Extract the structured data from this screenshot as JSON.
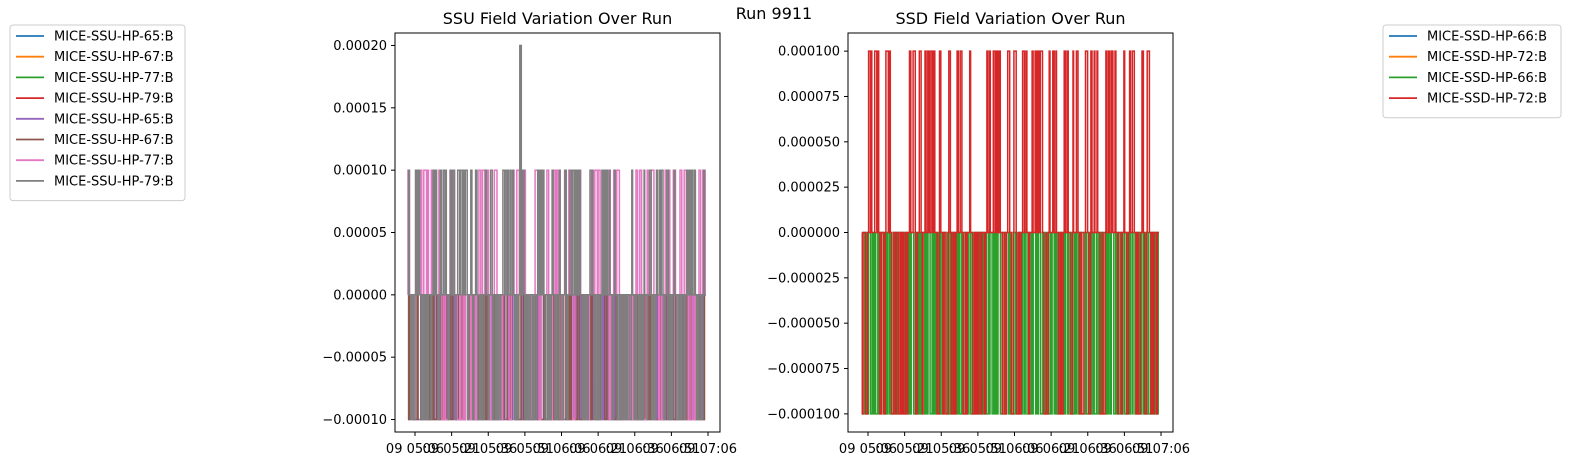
{
  "suptitle": "Run 9911",
  "chart_data": [
    {
      "type": "line",
      "title": "SSU Field Variation Over Run",
      "xlabel": "",
      "ylabel": "",
      "ylim": [
        -0.00011,
        0.00021
      ],
      "yticks": [
        -0.0001,
        -5e-05,
        0.0,
        5e-05,
        0.0001,
        0.00015,
        0.0002
      ],
      "ytick_labels": [
        "−0.00010",
        "−0.00005",
        "0.00000",
        "0.00005",
        "0.00010",
        "0.00015",
        "0.00020"
      ],
      "xtick_labels": [
        "09 05:06",
        "09 05:21",
        "09 05:36",
        "09 05:51",
        "09 06:06",
        "09 06:21",
        "09 06:36",
        "09 06:51",
        "09 07:06"
      ],
      "grid": false,
      "legend_position": "outside-left",
      "legend": [
        {
          "name": "MICE-SSU-HP-65:B",
          "color": "#1f77b4"
        },
        {
          "name": "MICE-SSU-HP-67:B",
          "color": "#ff7f0e"
        },
        {
          "name": "MICE-SSU-HP-77:B",
          "color": "#2ca02c"
        },
        {
          "name": "MICE-SSU-HP-79:B",
          "color": "#d62728"
        },
        {
          "name": "MICE-SSU-HP-65:B",
          "color": "#9467bd"
        },
        {
          "name": "MICE-SSU-HP-67:B",
          "color": "#8c564b"
        },
        {
          "name": "MICE-SSU-HP-77:B",
          "color": "#e377c2"
        },
        {
          "name": "MICE-SSU-HP-79:B",
          "color": "#7f7f7f"
        }
      ],
      "series": [
        {
          "name": "MICE-SSU-HP-65:B",
          "color": "#9467bd",
          "pattern": "switching",
          "levels": [
            0,
            -0.0001
          ],
          "spikes": 90
        },
        {
          "name": "MICE-SSU-HP-67:B",
          "color": "#8c564b",
          "pattern": "switching",
          "levels": [
            0,
            -0.0001
          ],
          "spikes": 70
        },
        {
          "name": "MICE-SSU-HP-77:B",
          "color": "#e377c2",
          "pattern": "switching",
          "levels": [
            0,
            0.0001,
            -0.0001
          ],
          "spikes": 80
        },
        {
          "name": "MICE-SSU-HP-79:B",
          "color": "#7f7f7f",
          "pattern": "switching",
          "levels": [
            0,
            0.0001,
            -0.0001
          ],
          "spikes": 120,
          "peak": 0.0002
        }
      ]
    },
    {
      "type": "line",
      "title": "SSD Field Variation Over Run",
      "xlabel": "",
      "ylabel": "",
      "ylim": [
        -0.00011,
        0.00011
      ],
      "yticks": [
        -0.0001,
        -7.5e-05,
        -5e-05,
        -2.5e-05,
        0.0,
        2.5e-05,
        5e-05,
        7.5e-05,
        0.0001
      ],
      "ytick_labels": [
        "−0.000100",
        "−0.000075",
        "−0.000050",
        "−0.000025",
        "0.000000",
        "0.000025",
        "0.000050",
        "0.000075",
        "0.000100"
      ],
      "xtick_labels": [
        "09 05:06",
        "09 05:21",
        "09 05:36",
        "09 05:51",
        "09 06:06",
        "09 06:21",
        "09 06:36",
        "09 06:51",
        "09 07:06"
      ],
      "grid": false,
      "legend_position": "outside-right",
      "legend": [
        {
          "name": "MICE-SSD-HP-66:B",
          "color": "#1f77b4"
        },
        {
          "name": "MICE-SSD-HP-72:B",
          "color": "#ff7f0e"
        },
        {
          "name": "MICE-SSD-HP-66:B",
          "color": "#2ca02c"
        },
        {
          "name": "MICE-SSD-HP-72:B",
          "color": "#d62728"
        }
      ],
      "series": [
        {
          "name": "MICE-SSD-HP-66:B",
          "color": "#2ca02c",
          "pattern": "switching",
          "levels": [
            0,
            -0.0001
          ],
          "spikes": 110
        },
        {
          "name": "MICE-SSD-HP-72:B",
          "color": "#d62728",
          "pattern": "switching",
          "levels": [
            0,
            0.0001,
            -0.0001
          ],
          "spikes": 100
        }
      ]
    }
  ]
}
